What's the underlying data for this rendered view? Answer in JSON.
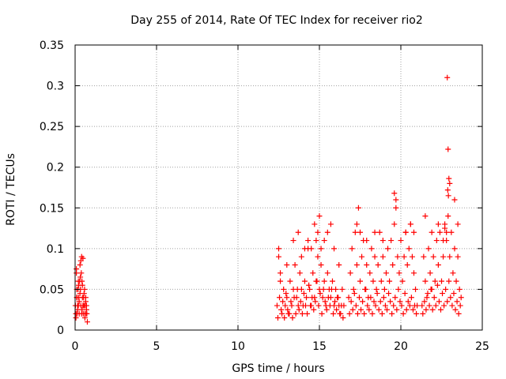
{
  "chart_data": {
    "type": "scatter",
    "title": "Day 255 of 2014, Rate Of TEC Index for receiver rio2",
    "xlabel": "GPS time / hours",
    "ylabel": "ROTI / TECUs",
    "xlim": [
      0,
      25
    ],
    "ylim": [
      0,
      0.35
    ],
    "x_ticks": [
      0,
      5,
      10,
      15,
      20,
      25
    ],
    "x_tick_labels": [
      "0",
      "5",
      "10",
      "15",
      "20",
      "25"
    ],
    "y_ticks": [
      0,
      0.05,
      0.1,
      0.15,
      0.2,
      0.25,
      0.3,
      0.35
    ],
    "y_tick_labels": [
      "0",
      "0.05",
      "0.1",
      "0.15",
      "0.2",
      "0.25",
      "0.3",
      "0.35"
    ],
    "grid": true,
    "marker": "+",
    "color": "#ff0000",
    "series": [
      {
        "name": "ROTI",
        "x": [
          0.02,
          0.05,
          0.08,
          0.1,
          0.12,
          0.15,
          0.18,
          0.2,
          0.22,
          0.25,
          0.28,
          0.3,
          0.33,
          0.35,
          0.38,
          0.4,
          0.42,
          0.45,
          0.48,
          0.5,
          0.52,
          0.55,
          0.58,
          0.6,
          0.62,
          0.65,
          0.68,
          0.7,
          0.72,
          0.75,
          0.05,
          0.1,
          0.15,
          0.2,
          0.25,
          0.3,
          0.35,
          0.4,
          0.45,
          0.5,
          0.55,
          0.6,
          0.65,
          0.7,
          0.08,
          0.12,
          0.22,
          0.32,
          0.42,
          0.48,
          12.4,
          12.5,
          12.6,
          12.7,
          12.8,
          12.9,
          13.0,
          13.1,
          13.2,
          13.3,
          13.4,
          13.5,
          13.6,
          13.7,
          13.8,
          13.9,
          14.0,
          14.1,
          14.2,
          14.3,
          14.4,
          14.5,
          14.6,
          14.7,
          14.8,
          14.9,
          15.0,
          15.1,
          15.2,
          15.3,
          15.4,
          15.5,
          15.6,
          15.7,
          15.8,
          15.9,
          16.0,
          16.1,
          16.2,
          16.3,
          16.4,
          16.5,
          12.45,
          12.55,
          12.65,
          12.75,
          12.85,
          12.95,
          13.05,
          13.15,
          13.25,
          13.35,
          13.45,
          13.55,
          13.65,
          13.75,
          13.85,
          13.95,
          14.05,
          14.15,
          14.25,
          14.35,
          14.45,
          14.55,
          14.65,
          14.75,
          14.85,
          14.95,
          15.05,
          15.15,
          15.25,
          15.35,
          15.45,
          15.55,
          15.65,
          15.75,
          15.85,
          15.95,
          16.05,
          16.15,
          16.25,
          16.35,
          16.45,
          12.5,
          12.6,
          13.0,
          13.4,
          13.7,
          13.9,
          14.1,
          14.3,
          14.5,
          14.7,
          14.8,
          14.9,
          15.0,
          15.1,
          15.3,
          15.5,
          15.7,
          15.9,
          16.2,
          16.8,
          16.9,
          17.0,
          17.1,
          17.2,
          17.3,
          17.4,
          17.5,
          17.6,
          17.7,
          17.8,
          17.9,
          18.0,
          18.1,
          18.2,
          18.3,
          18.4,
          18.5,
          18.6,
          18.7,
          18.8,
          18.9,
          19.0,
          19.1,
          19.2,
          19.3,
          19.4,
          19.5,
          19.6,
          19.7,
          19.8,
          19.9,
          20.0,
          20.1,
          20.2,
          20.3,
          20.4,
          20.5,
          20.6,
          20.7,
          20.8,
          20.9,
          21.0,
          16.85,
          16.95,
          17.05,
          17.15,
          17.25,
          17.35,
          17.45,
          17.55,
          17.65,
          17.75,
          17.85,
          17.95,
          18.05,
          18.15,
          18.25,
          18.35,
          18.45,
          18.55,
          18.65,
          18.75,
          18.85,
          18.95,
          19.05,
          19.15,
          19.25,
          19.35,
          19.45,
          19.55,
          19.65,
          19.75,
          19.85,
          19.95,
          20.05,
          20.15,
          20.25,
          20.35,
          20.45,
          20.55,
          20.65,
          20.75,
          20.85,
          20.95,
          17.3,
          17.5,
          17.9,
          18.4,
          18.9,
          19.6,
          19.7,
          20.3,
          20.6,
          20.8,
          21.3,
          21.4,
          21.5,
          21.6,
          21.7,
          21.8,
          21.9,
          22.0,
          22.1,
          22.2,
          22.3,
          22.4,
          22.5,
          22.6,
          22.7,
          22.8,
          22.9,
          23.0,
          23.1,
          23.2,
          23.3,
          23.4,
          23.5,
          23.6,
          23.7,
          21.35,
          21.45,
          21.55,
          21.65,
          21.75,
          21.85,
          21.95,
          22.05,
          22.15,
          22.25,
          22.35,
          22.45,
          22.55,
          22.65,
          22.75,
          22.85,
          22.95,
          23.05,
          23.15,
          23.25,
          23.35,
          23.45,
          23.55,
          23.65,
          21.5,
          21.9,
          22.3,
          22.6,
          22.8,
          22.85,
          22.9,
          22.95,
          23.0,
          23.3,
          23.5,
          22.7,
          22.88,
          22.92
        ],
        "y": [
          0.03,
          0.02,
          0.07,
          0.04,
          0.02,
          0.03,
          0.05,
          0.03,
          0.04,
          0.02,
          0.06,
          0.08,
          0.05,
          0.03,
          0.07,
          0.09,
          0.06,
          0.04,
          0.03,
          0.02,
          0.04,
          0.03,
          0.05,
          0.02,
          0.03,
          0.04,
          0.02,
          0.03,
          0.02,
          0.01,
          0.015,
          0.05,
          0.025,
          0.06,
          0.035,
          0.045,
          0.085,
          0.02,
          0.055,
          0.03,
          0.045,
          0.015,
          0.035,
          0.025,
          0.075,
          0.04,
          0.055,
          0.065,
          0.025,
          0.088,
          0.03,
          0.1,
          0.06,
          0.02,
          0.05,
          0.03,
          0.04,
          0.02,
          0.06,
          0.03,
          0.05,
          0.08,
          0.04,
          0.03,
          0.07,
          0.05,
          0.03,
          0.06,
          0.04,
          0.1,
          0.05,
          0.03,
          0.07,
          0.04,
          0.06,
          0.09,
          0.05,
          0.08,
          0.04,
          0.06,
          0.03,
          0.07,
          0.05,
          0.04,
          0.06,
          0.03,
          0.05,
          0.04,
          0.03,
          0.02,
          0.05,
          0.03,
          0.015,
          0.04,
          0.025,
          0.035,
          0.015,
          0.045,
          0.025,
          0.02,
          0.035,
          0.015,
          0.04,
          0.02,
          0.05,
          0.025,
          0.035,
          0.02,
          0.045,
          0.03,
          0.02,
          0.055,
          0.03,
          0.04,
          0.025,
          0.035,
          0.06,
          0.03,
          0.045,
          0.02,
          0.05,
          0.035,
          0.025,
          0.04,
          0.03,
          0.05,
          0.02,
          0.035,
          0.025,
          0.04,
          0.02,
          0.03,
          0.015,
          0.09,
          0.07,
          0.08,
          0.11,
          0.12,
          0.09,
          0.1,
          0.11,
          0.1,
          0.13,
          0.11,
          0.12,
          0.14,
          0.1,
          0.11,
          0.12,
          0.13,
          0.1,
          0.08,
          0.04,
          0.07,
          0.1,
          0.05,
          0.12,
          0.08,
          0.15,
          0.06,
          0.09,
          0.11,
          0.05,
          0.08,
          0.04,
          0.07,
          0.1,
          0.06,
          0.09,
          0.05,
          0.08,
          0.12,
          0.06,
          0.09,
          0.05,
          0.07,
          0.1,
          0.06,
          0.11,
          0.08,
          0.13,
          0.16,
          0.09,
          0.07,
          0.11,
          0.06,
          0.09,
          0.12,
          0.08,
          0.1,
          0.13,
          0.09,
          0.07,
          0.05,
          0.03,
          0.02,
          0.035,
          0.025,
          0.045,
          0.03,
          0.02,
          0.04,
          0.025,
          0.035,
          0.02,
          0.05,
          0.03,
          0.025,
          0.04,
          0.02,
          0.035,
          0.03,
          0.045,
          0.025,
          0.035,
          0.02,
          0.04,
          0.03,
          0.025,
          0.045,
          0.035,
          0.02,
          0.03,
          0.04,
          0.025,
          0.05,
          0.035,
          0.03,
          0.02,
          0.045,
          0.025,
          0.035,
          0.03,
          0.04,
          0.025,
          0.03,
          0.02,
          0.13,
          0.12,
          0.11,
          0.12,
          0.11,
          0.168,
          0.15,
          0.12,
          0.13,
          0.12,
          0.03,
          0.09,
          0.06,
          0.04,
          0.1,
          0.07,
          0.05,
          0.09,
          0.06,
          0.11,
          0.08,
          0.12,
          0.06,
          0.09,
          0.13,
          0.11,
          0.14,
          0.09,
          0.12,
          0.07,
          0.1,
          0.06,
          0.09,
          0.05,
          0.04,
          0.02,
          0.035,
          0.025,
          0.045,
          0.03,
          0.05,
          0.025,
          0.04,
          0.03,
          0.055,
          0.035,
          0.025,
          0.045,
          0.03,
          0.05,
          0.035,
          0.06,
          0.04,
          0.03,
          0.045,
          0.025,
          0.035,
          0.02,
          0.03,
          0.14,
          0.12,
          0.13,
          0.11,
          0.12,
          0.31,
          0.222,
          0.186,
          0.18,
          0.16,
          0.13,
          0.125,
          0.172,
          0.165
        ]
      }
    ]
  }
}
